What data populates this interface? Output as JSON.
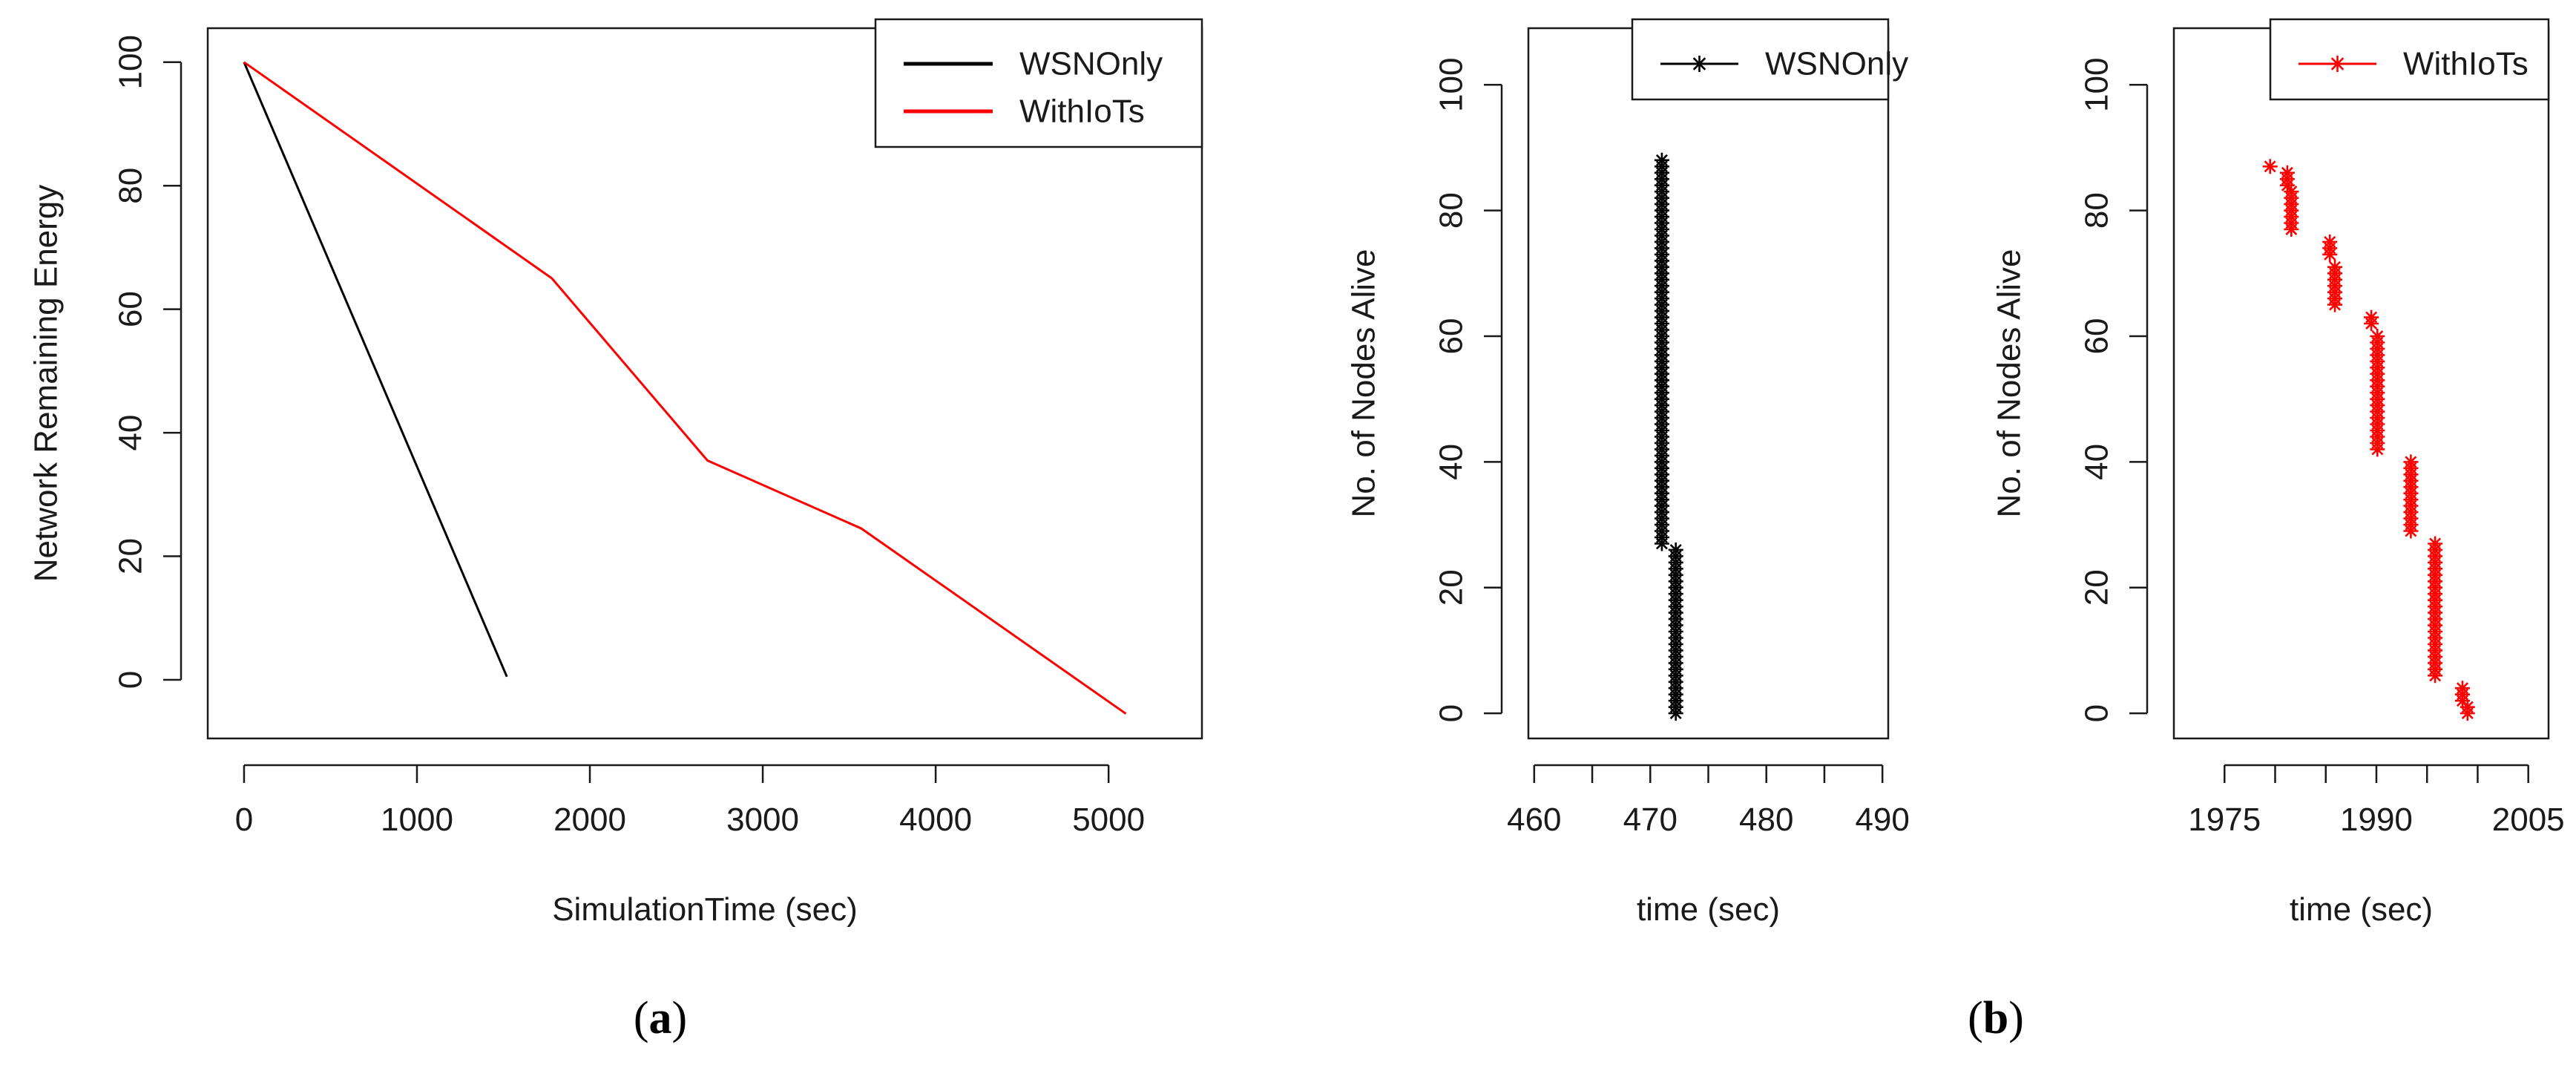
{
  "colors": {
    "wsn": "#000000",
    "iot": "#ff0000",
    "axis": "#1a1a1a"
  },
  "captions": {
    "a": "a",
    "b": "b"
  },
  "chart_data": [
    {
      "id": "a",
      "type": "line",
      "title": "",
      "xlabel": "SimulationTime (sec)",
      "ylabel": "Network Remaining Energy",
      "xlim": [
        -210,
        5540
      ],
      "ylim": [
        -9.5,
        105.5
      ],
      "xticks": [
        0,
        1000,
        2000,
        3000,
        4000,
        5000
      ],
      "xtick_labels": [
        "0",
        "1000",
        "2000",
        "3000",
        "4000",
        "5000"
      ],
      "yticks": [
        0,
        20,
        40,
        60,
        80,
        100
      ],
      "ytick_labels": [
        "0",
        "20",
        "40",
        "60",
        "80",
        "100"
      ],
      "legend": {
        "placement": "top-right",
        "entries": [
          {
            "label": "WSNOnly",
            "color": "#000000"
          },
          {
            "label": "WithIoTs",
            "color": "#ff0000"
          }
        ]
      },
      "series": [
        {
          "name": "WSNOnly",
          "color": "#000000",
          "x": [
            0,
            1520
          ],
          "y": [
            100,
            0.5
          ]
        },
        {
          "name": "WithIoTs",
          "color": "#ff0000",
          "x": [
            0,
            1780,
            2680,
            3570,
            5100
          ],
          "y": [
            100,
            65,
            35.5,
            24.5,
            -5.5
          ]
        }
      ]
    },
    {
      "id": "b-left",
      "type": "scatter",
      "title": "",
      "xlabel": "time (sec)",
      "ylabel": "No. of Nodes Alive",
      "xlim": [
        459.5,
        490.5
      ],
      "ylim": [
        -4,
        109
      ],
      "xticks": [
        460,
        470,
        480,
        490
      ],
      "xtick_labels": [
        "460",
        "470",
        "480",
        "490"
      ],
      "minor_xticks": [
        465,
        475,
        485
      ],
      "yticks": [
        0,
        20,
        40,
        60,
        80,
        100
      ],
      "ytick_labels": [
        "0",
        "20",
        "40",
        "60",
        "80",
        "100"
      ],
      "legend": {
        "placement": "top-right",
        "entries": [
          {
            "label": "WSNOnly",
            "color": "#000000"
          }
        ]
      },
      "series": [
        {
          "name": "WSNOnly",
          "color": "#000000",
          "marker": "*",
          "segments": [
            {
              "x": 471.0,
              "y_from": 27,
              "y_to": 88
            },
            {
              "x": 472.2,
              "y_from": 0,
              "y_to": 26
            }
          ]
        }
      ]
    },
    {
      "id": "b-right",
      "type": "scatter",
      "title": "",
      "xlabel": "time (sec)",
      "ylabel": "No. of Nodes Alive",
      "xlim": [
        1970,
        2007
      ],
      "ylim": [
        -4,
        109
      ],
      "xticks": [
        1975,
        1990,
        2005
      ],
      "xtick_labels": [
        "1975",
        "1990",
        "2005"
      ],
      "minor_xticks": [
        1980,
        1985,
        1995,
        2000
      ],
      "yticks": [
        0,
        20,
        40,
        60,
        80,
        100
      ],
      "ytick_labels": [
        "0",
        "20",
        "40",
        "60",
        "80",
        "100"
      ],
      "legend": {
        "placement": "top-right",
        "entries": [
          {
            "label": "WithIoTs",
            "color": "#ff0000"
          }
        ]
      },
      "series": [
        {
          "name": "WithIoTs",
          "color": "#ff0000",
          "marker": "*",
          "segments": [
            {
              "x": 1979.5,
              "y_from": 87,
              "y_to": 87
            },
            {
              "x": 1981.2,
              "y_from": 84,
              "y_to": 86
            },
            {
              "x": 1981.6,
              "y_from": 77,
              "y_to": 83
            },
            {
              "x": 1985.4,
              "y_from": 73,
              "y_to": 75
            },
            {
              "x": 1985.9,
              "y_from": 65,
              "y_to": 71
            },
            {
              "x": 1989.5,
              "y_from": 62,
              "y_to": 63
            },
            {
              "x": 1990.1,
              "y_from": 42,
              "y_to": 60
            },
            {
              "x": 1993.4,
              "y_from": 29,
              "y_to": 40
            },
            {
              "x": 1995.8,
              "y_from": 6,
              "y_to": 27
            },
            {
              "x": 1998.5,
              "y_from": 2,
              "y_to": 4
            },
            {
              "x": 1999.0,
              "y_from": 0,
              "y_to": 1
            }
          ]
        }
      ]
    }
  ]
}
